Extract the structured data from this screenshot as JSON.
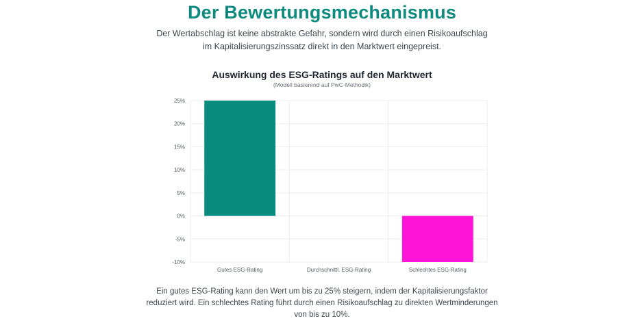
{
  "header": {
    "title": "Der Bewertungsmechanismus",
    "subtitle_line1": "Der Wertabschlag ist keine abstrakte Gefahr, sondern wird durch einen Risikoaufschlag",
    "subtitle_line2": "im Kapitalisierungszinssatz direkt in den Marktwert eingepreist."
  },
  "chart_data": {
    "type": "bar",
    "title": "Auswirkung des ESG-Ratings auf den Marktwert",
    "subtitle": "(Modell basierend auf PwC-Methodik)",
    "categories": [
      "Gutes ESG-Rating",
      "Durchschnittl. ESG-Rating",
      "Schlechtes ESG-Rating"
    ],
    "values": [
      25,
      0,
      -10
    ],
    "colors": [
      "#0b8a7e",
      "#0b8a7e",
      "#ff14d8"
    ],
    "ylim": [
      -10,
      25
    ],
    "yticks": [
      -10,
      -5,
      0,
      5,
      10,
      15,
      20,
      25
    ],
    "tick_suffix": "%",
    "grid": true,
    "xlabel": "",
    "ylabel": ""
  },
  "footer": {
    "line1": "Ein gutes ESG-Rating kann den Wert um bis zu 25% steigern, indem der Kapitalisierungsfaktor",
    "line2": "reduziert wird. Ein schlechtes Rating führt durch einen Risikoaufschlag zu direkten Wertminderungen",
    "line3": "von bis zu 10%."
  }
}
